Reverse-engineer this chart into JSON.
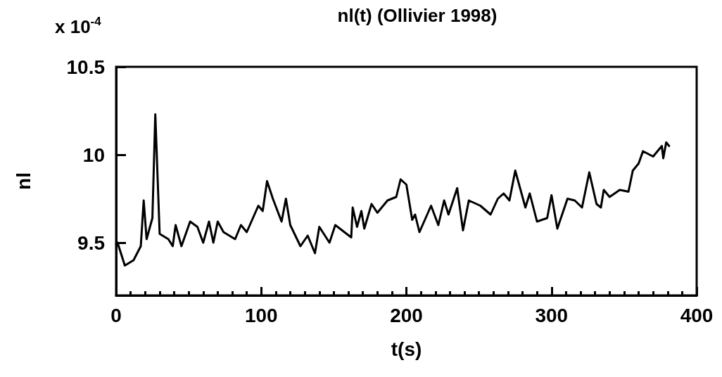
{
  "chart_data": {
    "type": "line",
    "title": "nl(t) (Ollivier 1998)",
    "xlabel": "t(s)",
    "ylabel": "nl",
    "annotations": [
      "x 10$^{-4}$"
    ],
    "x": [
      0,
      1,
      6,
      12,
      17,
      19,
      21,
      25,
      27,
      30,
      36,
      39,
      41,
      45,
      51,
      56,
      60,
      64,
      67,
      70,
      74,
      82,
      86,
      90,
      98,
      101,
      104,
      108,
      114,
      117,
      120,
      127,
      132,
      137,
      140,
      147,
      151,
      162,
      163,
      166,
      169,
      171,
      176,
      180,
      187,
      193,
      196,
      200,
      204,
      206,
      209,
      217,
      222,
      226,
      229,
      235,
      239,
      243,
      251,
      258,
      263,
      267,
      271,
      275,
      282,
      285,
      290,
      297,
      300,
      304,
      311,
      316,
      321,
      326,
      331,
      334,
      336,
      340,
      347,
      353,
      356,
      360,
      363,
      370,
      376,
      377,
      379,
      381
    ],
    "series": [
      {
        "color": "#000000",
        "values": [
          9.49,
          9.5,
          9.37,
          9.4,
          9.48,
          9.74,
          9.52,
          9.64,
          10.23,
          9.55,
          9.52,
          9.48,
          9.6,
          9.48,
          9.62,
          9.59,
          9.5,
          9.62,
          9.5,
          9.62,
          9.56,
          9.52,
          9.6,
          9.56,
          9.71,
          9.68,
          9.85,
          9.75,
          9.62,
          9.75,
          9.6,
          9.48,
          9.54,
          9.44,
          9.59,
          9.5,
          9.6,
          9.53,
          9.7,
          9.59,
          9.68,
          9.58,
          9.72,
          9.67,
          9.74,
          9.76,
          9.86,
          9.83,
          9.63,
          9.66,
          9.56,
          9.71,
          9.6,
          9.74,
          9.66,
          9.81,
          9.57,
          9.74,
          9.71,
          9.66,
          9.75,
          9.78,
          9.74,
          9.91,
          9.7,
          9.78,
          9.62,
          9.64,
          9.77,
          9.58,
          9.75,
          9.74,
          9.7,
          9.9,
          9.72,
          9.7,
          9.8,
          9.76,
          9.8,
          9.79,
          9.91,
          9.95,
          10.02,
          9.99,
          10.05,
          9.98,
          10.07,
          10.05
        ]
      }
    ],
    "xlim": [
      0,
      400
    ],
    "xticks": [
      0,
      100,
      200,
      300,
      400
    ],
    "ylim": [
      9.2,
      10.5
    ],
    "yticks": [
      9.5,
      10,
      10.5
    ],
    "grid": false,
    "marker": "none",
    "line_style": "solid"
  }
}
